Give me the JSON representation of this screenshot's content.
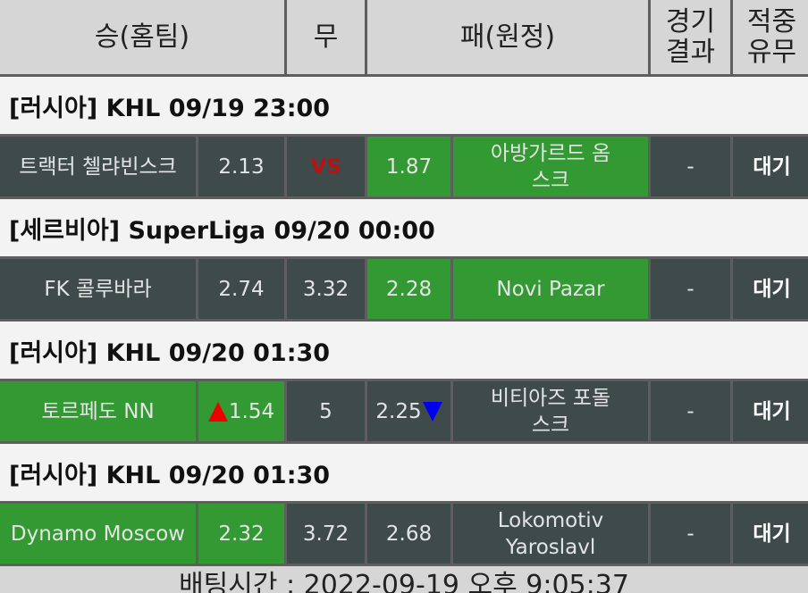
{
  "header": {
    "home": "승(홈팀)",
    "draw": "무",
    "away": "패(원정)",
    "result": "경기\n결과",
    "hit": "적중\n유무"
  },
  "games": [
    {
      "section": "[러시아] KHL 09/19 23:00",
      "home": "트랙터 첼랴빈스크",
      "home_odds": "2.13",
      "draw": "VS",
      "away_odds": "1.87",
      "away": "아방가르드 옴스크",
      "result": "-",
      "status": "대기",
      "pick": "away"
    },
    {
      "section": "[세르비아] SuperLiga 09/20 00:00",
      "home": "FK 콜루바라",
      "home_odds": "2.74",
      "draw": "3.32",
      "away_odds": "2.28",
      "away": "Novi Pazar",
      "result": "-",
      "status": "대기",
      "pick": "away"
    },
    {
      "section": "[러시아] KHL 09/20 01:30",
      "home": "토르페도 NN",
      "home_odds": "1.54",
      "draw": "5",
      "away_odds": "2.25",
      "away": "비티아즈 포돌스크",
      "result": "-",
      "status": "대기",
      "pick": "home",
      "home_trend": "up",
      "away_trend": "down"
    },
    {
      "section": "[러시아] KHL 09/20 01:30",
      "home": "Dynamo Moscow",
      "home_odds": "2.32",
      "draw": "3.72",
      "away_odds": "2.68",
      "away": "Lokomotiv Yaroslavl",
      "result": "-",
      "status": "대기",
      "pick": "home"
    }
  ],
  "footer": "배팅시간 : 2022-09-19 오후 9:05:37",
  "colors": {
    "win": "#339933",
    "cell": "#3f4b4b",
    "header": "#d6d6d6",
    "vs": "#bb1111"
  }
}
